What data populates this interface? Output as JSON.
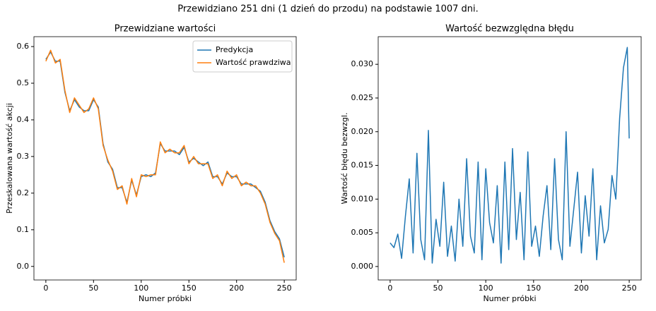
{
  "suptitle": "Przewidziano 251 dni (1 dzień do przodu) na podstawie 1007 dni.",
  "chart_data": [
    {
      "type": "line",
      "title": "Przewidziane wartości",
      "xlabel": "Numer próbki",
      "ylabel": "Przeskalowana wartość akcji",
      "legend": "upper right",
      "x": [
        0,
        5,
        10,
        15,
        20,
        25,
        30,
        35,
        40,
        45,
        50,
        55,
        60,
        65,
        70,
        75,
        80,
        85,
        90,
        95,
        100,
        105,
        110,
        115,
        120,
        125,
        130,
        135,
        140,
        145,
        150,
        155,
        160,
        165,
        170,
        175,
        180,
        185,
        190,
        195,
        200,
        205,
        210,
        215,
        220,
        225,
        230,
        235,
        240,
        245,
        250
      ],
      "series": [
        {
          "name": "Predykcja",
          "color": "#1f77b4",
          "values": [
            0.565,
            0.585,
            0.56,
            0.56,
            0.475,
            0.425,
            0.455,
            0.435,
            0.425,
            0.425,
            0.455,
            0.435,
            0.335,
            0.285,
            0.265,
            0.215,
            0.215,
            0.175,
            0.235,
            0.195,
            0.245,
            0.25,
            0.245,
            0.255,
            0.335,
            0.315,
            0.315,
            0.315,
            0.305,
            0.325,
            0.285,
            0.295,
            0.285,
            0.275,
            0.285,
            0.245,
            0.245,
            0.225,
            0.255,
            0.245,
            0.245,
            0.225,
            0.225,
            0.225,
            0.215,
            0.205,
            0.175,
            0.125,
            0.095,
            0.075,
            0.025
          ]
        },
        {
          "name": "Wartość prawdziwa",
          "color": "#ff7f0e",
          "values": [
            0.56,
            0.59,
            0.555,
            0.565,
            0.48,
            0.42,
            0.46,
            0.44,
            0.42,
            0.43,
            0.46,
            0.43,
            0.33,
            0.29,
            0.26,
            0.21,
            0.22,
            0.17,
            0.24,
            0.19,
            0.25,
            0.245,
            0.25,
            0.25,
            0.34,
            0.31,
            0.32,
            0.31,
            0.31,
            0.33,
            0.28,
            0.3,
            0.28,
            0.28,
            0.28,
            0.24,
            0.25,
            0.22,
            0.26,
            0.24,
            0.25,
            0.22,
            0.23,
            0.22,
            0.22,
            0.2,
            0.17,
            0.12,
            0.09,
            0.07,
            0.01
          ]
        }
      ],
      "xlim": [
        -12.5,
        262.5
      ],
      "xticks": [
        0,
        50,
        100,
        150,
        200,
        250
      ],
      "ylim": [
        -0.037,
        0.627
      ],
      "yticks": [
        {
          "value": 0,
          "label": "0.0"
        },
        0.1,
        0.2,
        0.3,
        0.4,
        0.5,
        0.6
      ]
    },
    {
      "type": "line",
      "title": "Wartość bezwzględna błędu",
      "xlabel": "Numer próbki",
      "ylabel": "Wartość błędu bezwzgl.",
      "color": "#1f77b4",
      "x": [
        0,
        4,
        8,
        12,
        16,
        20,
        24,
        28,
        32,
        36,
        40,
        44,
        48,
        52,
        56,
        60,
        64,
        68,
        72,
        76,
        80,
        84,
        88,
        92,
        96,
        100,
        104,
        108,
        112,
        116,
        120,
        124,
        128,
        132,
        136,
        140,
        144,
        148,
        152,
        156,
        160,
        164,
        168,
        172,
        176,
        180,
        184,
        188,
        192,
        196,
        200,
        204,
        208,
        212,
        216,
        220,
        224,
        228,
        232,
        236,
        240,
        244,
        248,
        250
      ],
      "values": [
        0.0035,
        0.0028,
        0.0048,
        0.0012,
        0.0075,
        0.013,
        0.002,
        0.0168,
        0.004,
        0.001,
        0.0202,
        0.0005,
        0.007,
        0.003,
        0.0125,
        0.0015,
        0.006,
        0.0008,
        0.01,
        0.003,
        0.016,
        0.0045,
        0.002,
        0.0155,
        0.001,
        0.0145,
        0.0065,
        0.0035,
        0.012,
        0.0005,
        0.0155,
        0.0025,
        0.0175,
        0.004,
        0.011,
        0.001,
        0.017,
        0.003,
        0.006,
        0.0015,
        0.0075,
        0.012,
        0.0025,
        0.016,
        0.004,
        0.001,
        0.02,
        0.003,
        0.0085,
        0.014,
        0.002,
        0.0105,
        0.0045,
        0.0145,
        0.001,
        0.009,
        0.0035,
        0.0055,
        0.0135,
        0.01,
        0.022,
        0.0295,
        0.0325,
        0.019
      ],
      "xlim": [
        -12.5,
        262.5
      ],
      "xticks": [
        0,
        50,
        100,
        150,
        200,
        250
      ],
      "ylim": [
        -0.002,
        0.0341
      ],
      "yticks": [
        {
          "value": 0,
          "label": "0.000"
        },
        0.005,
        {
          "value": 0.01,
          "label": "0.010"
        },
        0.015,
        {
          "value": 0.02,
          "label": "0.020"
        },
        0.025,
        {
          "value": 0.03,
          "label": "0.030"
        }
      ]
    }
  ]
}
